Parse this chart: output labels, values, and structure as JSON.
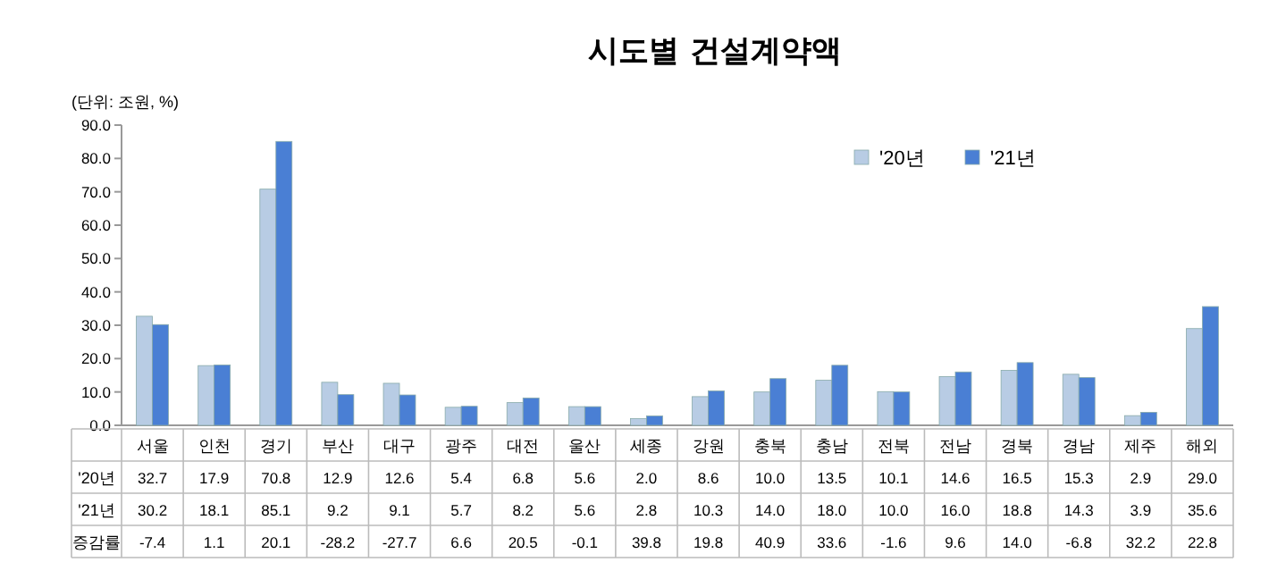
{
  "chart_data": {
    "type": "bar",
    "title": "시도별 건설계약액",
    "annotations": [
      "(단위: 조원, %)",
      "증감률",
      "-7.4",
      "1.1",
      "20.1",
      "-28.2",
      "-27.7",
      "6.6",
      "20.5",
      "-0.1",
      "39.8",
      "19.8",
      "40.9",
      "33.6",
      "-1.6",
      "9.6",
      "14.0",
      "-6.8",
      "32.2",
      "22.8"
    ],
    "categories": [
      "서울",
      "인천",
      "경기",
      "부산",
      "대구",
      "광주",
      "대전",
      "울산",
      "세종",
      "강원",
      "충북",
      "충남",
      "전북",
      "전남",
      "경북",
      "경남",
      "제주",
      "해외"
    ],
    "series": [
      {
        "name": "'20년",
        "color": "#b8cce4",
        "values": [
          32.7,
          17.9,
          70.8,
          12.9,
          12.6,
          5.4,
          6.8,
          5.6,
          2.0,
          8.6,
          10.0,
          13.5,
          10.1,
          14.6,
          16.5,
          15.3,
          2.9,
          29.0
        ],
        "value_labels": [
          "32.7",
          "17.9",
          "70.8",
          "12.9",
          "12.6",
          "5.4",
          "6.8",
          "5.6",
          "2.0",
          "8.6",
          "10.0",
          "13.5",
          "10.1",
          "14.6",
          "16.5",
          "15.3",
          "2.9",
          "29.0"
        ]
      },
      {
        "name": "'21년",
        "color": "#4a7fd4",
        "values": [
          30.2,
          18.1,
          85.1,
          9.2,
          9.1,
          5.7,
          8.2,
          5.6,
          2.8,
          10.3,
          14.0,
          18.0,
          10.0,
          16.0,
          18.8,
          14.3,
          3.9,
          35.6
        ],
        "value_labels": [
          "30.2",
          "18.1",
          "85.1",
          "9.2",
          "9.1",
          "5.7",
          "8.2",
          "5.6",
          "2.8",
          "10.3",
          "14.0",
          "18.0",
          "10.0",
          "16.0",
          "18.8",
          "14.3",
          "3.9",
          "35.6"
        ]
      }
    ],
    "ylim": [
      0,
      90
    ],
    "yticks": [
      {
        "value": 0,
        "label": "0.0"
      },
      {
        "value": 10,
        "label": "10.0"
      },
      {
        "value": 20,
        "label": "20.0"
      },
      {
        "value": 30,
        "label": "30.0"
      },
      {
        "value": 40,
        "label": "40.0"
      },
      {
        "value": 50,
        "label": "50.0"
      },
      {
        "value": 60,
        "label": "60.0"
      },
      {
        "value": 70,
        "label": "70.0"
      },
      {
        "value": 80,
        "label": "80.0"
      },
      {
        "value": 90,
        "label": "90.0"
      }
    ],
    "legend": "top right"
  }
}
